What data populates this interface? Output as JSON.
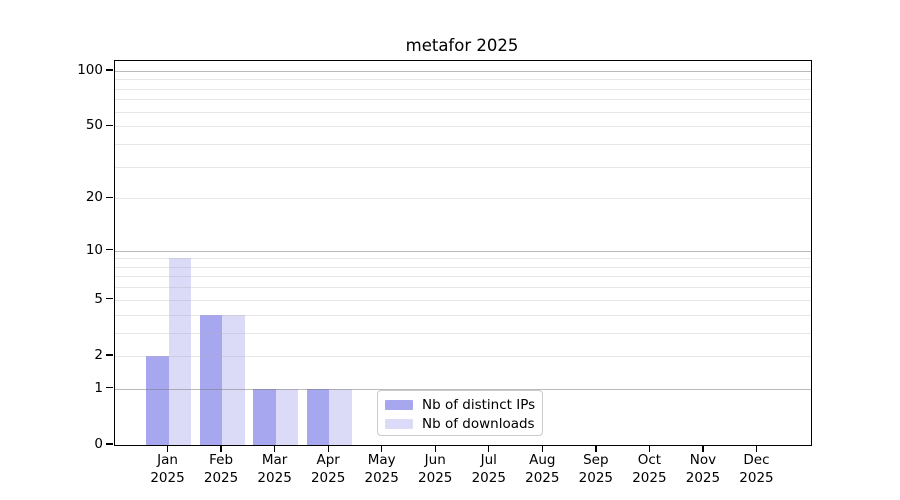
{
  "chart_data": {
    "type": "bar",
    "title": "metafor 2025",
    "categories": [
      "Jan",
      "Feb",
      "Mar",
      "Apr",
      "May",
      "Jun",
      "Jul",
      "Aug",
      "Sep",
      "Oct",
      "Nov",
      "Dec"
    ],
    "x_year_line": "2025",
    "series": [
      {
        "name": "Nb of distinct IPs",
        "color": "#a7a7f0",
        "values": [
          2,
          4,
          1,
          1,
          0,
          0,
          0,
          0,
          0,
          0,
          0,
          0
        ]
      },
      {
        "name": "Nb of downloads",
        "color": "#dbdbf8",
        "values": [
          9,
          4,
          1,
          1,
          0,
          0,
          0,
          0,
          0,
          0,
          0,
          0
        ]
      }
    ],
    "yscale": "log1p",
    "ylim": [
      0,
      113
    ],
    "y_ticks": [
      {
        "value": 0,
        "label": "0"
      },
      {
        "value": 1,
        "label": "1"
      },
      {
        "value": 2,
        "label": "2"
      },
      {
        "value": 5,
        "label": "5"
      },
      {
        "value": 10,
        "label": "10"
      },
      {
        "value": 20,
        "label": "20"
      },
      {
        "value": 50,
        "label": "50"
      },
      {
        "value": 100,
        "label": "100"
      }
    ],
    "y_major_gridlines": [
      1,
      10,
      100
    ],
    "y_minor_gridlines": [
      2,
      3,
      4,
      5,
      6,
      7,
      8,
      9,
      20,
      30,
      40,
      50,
      60,
      70,
      80,
      90
    ],
    "grid": true,
    "legend": {
      "position": "lower-center-inside"
    },
    "colors": {
      "major_grid": "rgba(120,120,120,0.5)",
      "minor_grid": "rgba(178,178,178,0.32)",
      "axis": "#000000",
      "text": "#000000",
      "background": "#ffffff"
    }
  }
}
